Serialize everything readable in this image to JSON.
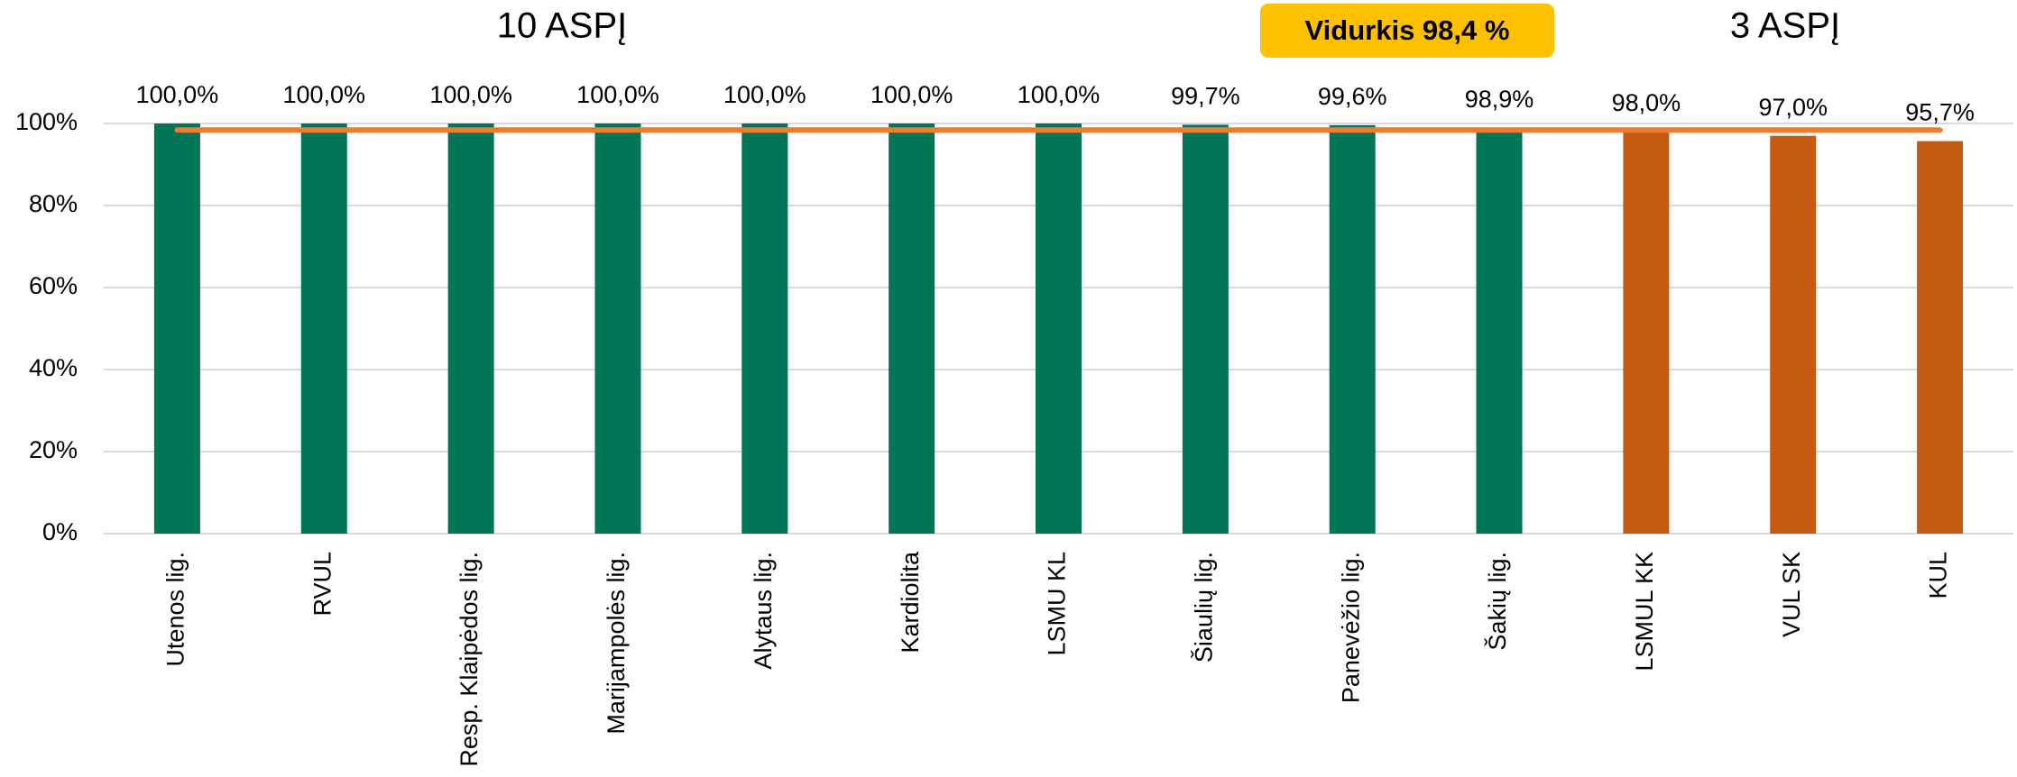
{
  "chart_data": {
    "type": "bar",
    "annotations": [
      "10 ASPĮ",
      "3 ASPĮ"
    ],
    "average": {
      "value": 98.4,
      "label": "Vidurkis 98,4 %"
    },
    "categories": [
      "Utenos lig.",
      "RVUL",
      "Resp. Klaipėdos lig.",
      "Marijampolės lig.",
      "Alytaus lig.",
      "Kardiolita",
      "LSMU KL",
      "Šiaulių lig.",
      "Panevėžio lig.",
      "Šakių lig.",
      "LSMUL KK",
      "VUL SK",
      "KUL"
    ],
    "values": [
      100.0,
      100.0,
      100.0,
      100.0,
      100.0,
      100.0,
      100.0,
      99.7,
      99.6,
      98.9,
      98.0,
      97.0,
      95.7
    ],
    "value_labels": [
      "100,0%",
      "100,0%",
      "100,0%",
      "100,0%",
      "100,0%",
      "100,0%",
      "100,0%",
      "99,7%",
      "99,6%",
      "98,9%",
      "98,0%",
      "97,0%",
      "95,7%"
    ],
    "colors": [
      "#007656",
      "#007656",
      "#007656",
      "#007656",
      "#007656",
      "#007656",
      "#007656",
      "#007656",
      "#007656",
      "#007656",
      "#c55a11",
      "#c55a11",
      "#c55a11"
    ],
    "average_color": "#ed7d31",
    "ylim": [
      0,
      100
    ],
    "yticks": [
      {
        "value": 0,
        "label": "0%"
      },
      {
        "value": 20,
        "label": "20%"
      },
      {
        "value": 40,
        "label": "40%"
      },
      {
        "value": 60,
        "label": "60%"
      },
      {
        "value": 80,
        "label": "80%"
      },
      {
        "value": 100,
        "label": "100%"
      }
    ],
    "grid": true
  }
}
